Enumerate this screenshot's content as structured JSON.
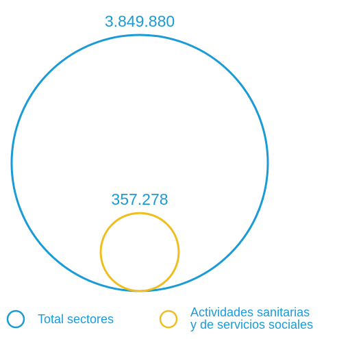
{
  "chart_data": {
    "type": "nested-bubble",
    "series": [
      {
        "name": "Total sectores",
        "value": 3849880,
        "label": "3.849.880",
        "color": "#1a9bd7"
      },
      {
        "name": "Actividades sanitarias y de servicios sociales",
        "value": 357278,
        "label": "357.278",
        "color": "#efbe1e"
      }
    ],
    "legend": {
      "placement": "bottom",
      "items": [
        {
          "lines": [
            "Total sectores"
          ],
          "color": "#1a9bd7"
        },
        {
          "lines": [
            "Actividades sanitarias",
            "y de servicios sociales"
          ],
          "color": "#efbe1e"
        }
      ]
    }
  }
}
